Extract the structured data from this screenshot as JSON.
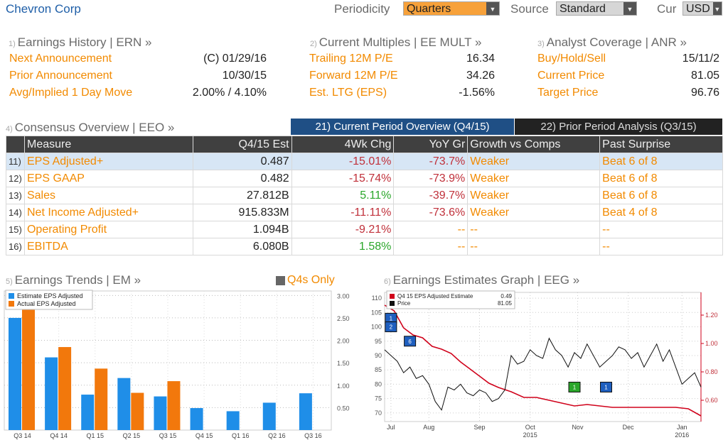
{
  "header": {
    "title": "Chevron Corp",
    "periodicity_label": "Periodicity",
    "periodicity_value": "Quarters",
    "source_label": "Source",
    "source_value": "Standard",
    "cur_label": "Cur",
    "cur_value": "USD"
  },
  "earnings_history": {
    "num": "1)",
    "title": "Earnings History | ERN »",
    "rows": [
      {
        "label": "Next Announcement",
        "value": "(C)  01/29/16"
      },
      {
        "label": "Prior Announcement",
        "value": "10/30/15"
      },
      {
        "label": "Avg/Implied 1 Day Move",
        "value": "2.00% / 4.10%"
      }
    ]
  },
  "current_multiples": {
    "num": "2)",
    "title": "Current Multiples | EE MULT »",
    "rows": [
      {
        "label": "Trailing 12M P/E",
        "value": "16.34"
      },
      {
        "label": "Forward 12M P/E",
        "value": "34.26"
      },
      {
        "label": "Est. LTG (EPS)",
        "value": "-1.56%"
      }
    ]
  },
  "analyst_coverage": {
    "num": "3)",
    "title": "Analyst Coverage | ANR »",
    "rows": [
      {
        "label": "Buy/Hold/Sell",
        "value": "15/11/2"
      },
      {
        "label": "Current Price",
        "value": "81.05"
      },
      {
        "label": "Target Price",
        "value": "96.76"
      }
    ]
  },
  "consensus": {
    "num": "4)",
    "title": "Consensus Overview | EEO »",
    "tab_current": "21) Current Period Overview (Q4/15)",
    "tab_prior": "22) Prior Period Analysis (Q3/15)",
    "columns": [
      "Measure",
      "Q4/15 Est",
      "4Wk Chg",
      "YoY Gr",
      "Growth vs Comps",
      "Past Surprise"
    ],
    "rows": [
      {
        "num": "11)",
        "measure": "EPS Adjusted+",
        "est": "0.487",
        "chg": "-15.01%",
        "yoy": "-73.7%",
        "growth": "Weaker",
        "surprise": "Beat 6 of 8"
      },
      {
        "num": "12)",
        "measure": "EPS GAAP",
        "est": "0.482",
        "chg": "-15.74%",
        "yoy": "-73.9%",
        "growth": "Weaker",
        "surprise": "Beat 6 of 8"
      },
      {
        "num": "13)",
        "measure": "Sales",
        "est": "27.812B",
        "chg": "5.11%",
        "yoy": "-39.7%",
        "growth": "Weaker",
        "surprise": "Beat 6 of 8"
      },
      {
        "num": "14)",
        "measure": "Net Income Adjusted+",
        "est": "915.833M",
        "chg": "-11.11%",
        "yoy": "-73.6%",
        "growth": "Weaker",
        "surprise": "Beat 4 of 8"
      },
      {
        "num": "15)",
        "measure": "Operating Profit",
        "est": "1.094B",
        "chg": "-9.21%",
        "yoy": "--",
        "growth": "--",
        "surprise": "--"
      },
      {
        "num": "16)",
        "measure": "EBITDA",
        "est": "6.080B",
        "chg": "1.58%",
        "yoy": "--",
        "growth": "--",
        "surprise": "--"
      }
    ]
  },
  "earnings_trends": {
    "num": "5)",
    "title": "Earnings Trends | EM »",
    "q4_only": "Q4s Only"
  },
  "estimates_graph": {
    "num": "6)",
    "title": "Earnings Estimates Graph | EEG »"
  },
  "chart_data": [
    {
      "type": "bar",
      "categories": [
        "Q3 14",
        "Q4 14",
        "Q1 15",
        "Q2 15",
        "Q3 15",
        "Q4 15",
        "Q1 16",
        "Q2 16",
        "Q3 16"
      ],
      "series": [
        {
          "name": "Estimate EPS Adjusted",
          "color": "#1f8ee8",
          "values": [
            2.5,
            1.62,
            0.79,
            1.16,
            0.75,
            0.49,
            0.42,
            0.61,
            0.82
          ]
        },
        {
          "name": "Actual EPS Adjusted",
          "color": "#f2780c",
          "values": [
            2.68,
            1.85,
            1.37,
            0.83,
            1.09,
            null,
            null,
            null,
            null
          ]
        }
      ],
      "yticks": [
        "0.50",
        "1.00",
        "1.50",
        "2.00",
        "2.50",
        "3.00"
      ],
      "ylim": [
        0,
        3.1
      ],
      "axis": "right",
      "legend": "top-left"
    },
    {
      "type": "line",
      "legend": "top-left",
      "series": [
        {
          "name": "Q4 15 EPS Adjusted Estimate",
          "legend_value": "0.49",
          "color": "#d0021b",
          "axis": "right",
          "x": [
            0,
            3,
            6,
            9,
            12,
            15,
            18,
            21,
            24,
            27,
            30,
            33,
            36,
            40,
            44,
            48,
            52,
            56,
            60,
            64,
            68,
            72,
            76,
            80,
            84,
            88,
            92,
            96,
            100
          ],
          "values": [
            1.27,
            1.23,
            1.11,
            1.06,
            1.04,
            0.98,
            0.96,
            0.93,
            0.87,
            0.82,
            0.77,
            0.72,
            0.69,
            0.66,
            0.62,
            0.62,
            0.6,
            0.58,
            0.56,
            0.57,
            0.56,
            0.55,
            0.55,
            0.55,
            0.55,
            0.55,
            0.55,
            0.54,
            0.49
          ]
        },
        {
          "name": "Price",
          "legend_value": "81.05",
          "color": "#111111",
          "axis": "left",
          "x": [
            0,
            2,
            4,
            6,
            8,
            10,
            12,
            14,
            16,
            18,
            20,
            22,
            24,
            26,
            28,
            30,
            32,
            34,
            36,
            38,
            40,
            42,
            44,
            46,
            48,
            50,
            52,
            54,
            56,
            58,
            60,
            62,
            64,
            66,
            68,
            70,
            72,
            74,
            76,
            78,
            80,
            82,
            84,
            86,
            88,
            90,
            92,
            94,
            96,
            98,
            100
          ],
          "values": [
            92,
            90,
            88,
            84,
            86,
            82,
            83,
            80,
            74,
            71,
            79,
            78,
            80,
            77,
            76,
            78,
            77,
            74,
            75,
            78,
            90,
            87,
            88,
            92,
            90,
            89,
            96,
            92,
            90,
            86,
            91,
            89,
            94,
            90,
            86,
            88,
            90,
            93,
            92,
            89,
            91,
            86,
            90,
            94,
            88,
            92,
            86,
            80,
            82,
            84,
            79
          ]
        }
      ],
      "left_ticks": [
        "70",
        "75",
        "80",
        "85",
        "90",
        "95",
        "100",
        "105",
        "110"
      ],
      "right_ticks": [
        "0.60",
        "0.80",
        "1.00",
        "1.20"
      ],
      "x_ticks": [
        "Jul",
        "Aug",
        "Sep",
        "Oct",
        "Nov",
        "Dec",
        "Jan"
      ],
      "x_years": [
        "2015",
        "2016"
      ],
      "markers": [
        {
          "label": "1",
          "color": "#1f5fbf",
          "x": 2,
          "price": 103
        },
        {
          "label": "2",
          "color": "#1f5fbf",
          "x": 2,
          "price": 100
        },
        {
          "label": "6",
          "color": "#1f5fbf",
          "x": 8,
          "price": 95
        },
        {
          "label": "1",
          "color": "#2aa62a",
          "x": 60,
          "price": 79
        },
        {
          "label": "1",
          "color": "#1f5fbf",
          "x": 70,
          "price": 79
        }
      ]
    }
  ]
}
